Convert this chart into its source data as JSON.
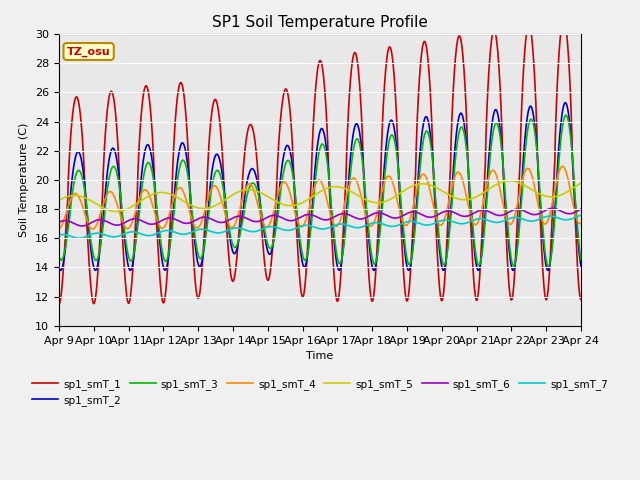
{
  "title": "SP1 Soil Temperature Profile",
  "xlabel": "Time",
  "ylabel": "Soil Temperature (C)",
  "ylim": [
    10,
    30
  ],
  "annotation": "TZ_osu",
  "fig_bg": "#f0f0f0",
  "ax_bg": "#e8e8e8",
  "legend_labels": [
    "sp1_smT_1",
    "sp1_smT_2",
    "sp1_smT_3",
    "sp1_smT_4",
    "sp1_smT_5",
    "sp1_smT_6",
    "sp1_smT_7"
  ],
  "colors": [
    "#cc0000",
    "#0000cc",
    "#00bb00",
    "#ff8800",
    "#cccc00",
    "#9900cc",
    "#00cccc"
  ],
  "xtick_labels": [
    "Apr 9",
    "Apr 10",
    "Apr 11",
    "Apr 12",
    "Apr 13",
    "Apr 14",
    "Apr 15",
    "Apr 16",
    "Apr 17",
    "Apr 18",
    "Apr 19",
    "Apr 20",
    "Apr 21",
    "Apr 22",
    "Apr 23",
    "Apr 24"
  ]
}
